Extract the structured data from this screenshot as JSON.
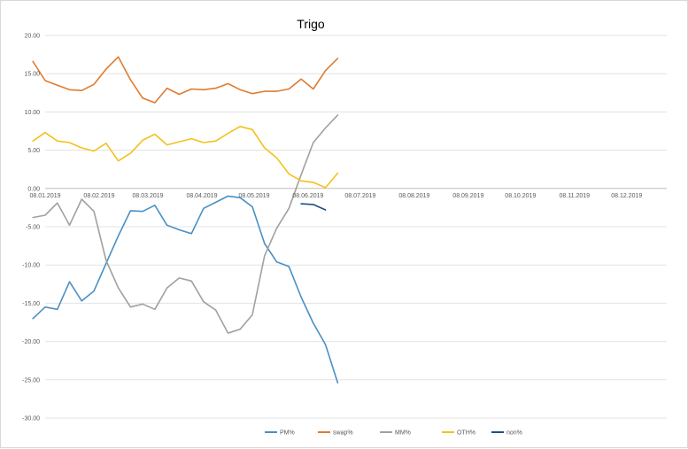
{
  "chart_data": {
    "type": "line",
    "title": "Trigo",
    "xlabel": "",
    "ylabel": "",
    "ylim": [
      -30,
      20
    ],
    "y_ticks": [
      20,
      15,
      10,
      5,
      0,
      -5,
      -10,
      -15,
      -20,
      -25,
      -30
    ],
    "y_tick_labels": [
      "20.00",
      "15.00",
      "10.00",
      "5.00",
      "0.00",
      "-5.00",
      "-10.00",
      "-15.00",
      "-20.00",
      "-25.00",
      "-30.00"
    ],
    "x_tick_labels": [
      "08.01.2019",
      "08.02.2019",
      "08.03.2019",
      "08.04.2019",
      "08.05.2019",
      "08.06.2019",
      "08.07.2019",
      "08.08.2019",
      "08.09.2019",
      "08.10.2019",
      "08.11.2019",
      "08.12.2019"
    ],
    "grid": "horizontal",
    "legend_position": "bottom",
    "series": [
      {
        "name": "PM%",
        "color": "#4a90c4",
        "points": [
          [
            "2019-01-01",
            -17.0
          ],
          [
            "2019-01-08",
            -15.5
          ],
          [
            "2019-01-15",
            -15.8
          ],
          [
            "2019-01-22",
            -12.2
          ],
          [
            "2019-01-29",
            -14.7
          ],
          [
            "2019-02-05",
            -13.4
          ],
          [
            "2019-02-12",
            -9.8
          ],
          [
            "2019-02-19",
            -6.2
          ],
          [
            "2019-02-26",
            -2.9
          ],
          [
            "2019-03-05",
            -3.0
          ],
          [
            "2019-03-12",
            -2.2
          ],
          [
            "2019-03-19",
            -4.8
          ],
          [
            "2019-03-26",
            -5.4
          ],
          [
            "2019-04-02",
            -5.9
          ],
          [
            "2019-04-09",
            -2.6
          ],
          [
            "2019-04-16",
            -1.8
          ],
          [
            "2019-04-23",
            -1.0
          ],
          [
            "2019-04-30",
            -1.2
          ],
          [
            "2019-05-07",
            -2.4
          ],
          [
            "2019-05-14",
            -7.2
          ],
          [
            "2019-05-21",
            -9.6
          ],
          [
            "2019-05-28",
            -10.2
          ],
          [
            "2019-06-04",
            -14.2
          ],
          [
            "2019-06-11",
            -17.6
          ],
          [
            "2019-06-18",
            -20.4
          ],
          [
            "2019-06-25",
            -25.4
          ]
        ]
      },
      {
        "name": "swap%",
        "color": "#e07b2e",
        "points": [
          [
            "2019-01-01",
            16.6
          ],
          [
            "2019-01-08",
            14.1
          ],
          [
            "2019-01-15",
            13.5
          ],
          [
            "2019-01-22",
            12.9
          ],
          [
            "2019-01-29",
            12.8
          ],
          [
            "2019-02-05",
            13.6
          ],
          [
            "2019-02-12",
            15.6
          ],
          [
            "2019-02-19",
            17.2
          ],
          [
            "2019-02-26",
            14.2
          ],
          [
            "2019-03-05",
            11.8
          ],
          [
            "2019-03-12",
            11.2
          ],
          [
            "2019-03-19",
            13.1
          ],
          [
            "2019-03-26",
            12.3
          ],
          [
            "2019-04-02",
            13.0
          ],
          [
            "2019-04-09",
            12.9
          ],
          [
            "2019-04-16",
            13.1
          ],
          [
            "2019-04-23",
            13.7
          ],
          [
            "2019-04-30",
            12.9
          ],
          [
            "2019-05-07",
            12.4
          ],
          [
            "2019-05-14",
            12.7
          ],
          [
            "2019-05-21",
            12.7
          ],
          [
            "2019-05-28",
            13.0
          ],
          [
            "2019-06-04",
            14.3
          ],
          [
            "2019-06-11",
            13.0
          ],
          [
            "2019-06-18",
            15.4
          ],
          [
            "2019-06-25",
            17.0
          ]
        ]
      },
      {
        "name": "MM%",
        "color": "#a0a0a0",
        "points": [
          [
            "2019-01-01",
            -3.8
          ],
          [
            "2019-01-08",
            -3.5
          ],
          [
            "2019-01-15",
            -1.9
          ],
          [
            "2019-01-22",
            -4.8
          ],
          [
            "2019-01-29",
            -1.4
          ],
          [
            "2019-02-05",
            -3.0
          ],
          [
            "2019-02-12",
            -9.4
          ],
          [
            "2019-02-19",
            -13.0
          ],
          [
            "2019-02-26",
            -15.5
          ],
          [
            "2019-03-05",
            -15.1
          ],
          [
            "2019-03-12",
            -15.8
          ],
          [
            "2019-03-19",
            -13.0
          ],
          [
            "2019-03-26",
            -11.7
          ],
          [
            "2019-04-02",
            -12.1
          ],
          [
            "2019-04-09",
            -14.8
          ],
          [
            "2019-04-16",
            -15.9
          ],
          [
            "2019-04-23",
            -18.9
          ],
          [
            "2019-04-30",
            -18.4
          ],
          [
            "2019-05-07",
            -16.5
          ],
          [
            "2019-05-14",
            -8.8
          ],
          [
            "2019-05-21",
            -5.2
          ],
          [
            "2019-05-28",
            -2.6
          ],
          [
            "2019-06-04",
            1.8
          ],
          [
            "2019-06-11",
            6.0
          ],
          [
            "2019-06-18",
            7.9
          ],
          [
            "2019-06-25",
            9.6
          ]
        ]
      },
      {
        "name": "OTH%",
        "color": "#f2c21a",
        "points": [
          [
            "2019-01-01",
            6.2
          ],
          [
            "2019-01-08",
            7.3
          ],
          [
            "2019-01-15",
            6.2
          ],
          [
            "2019-01-22",
            6.0
          ],
          [
            "2019-01-29",
            5.3
          ],
          [
            "2019-02-05",
            4.9
          ],
          [
            "2019-02-12",
            5.9
          ],
          [
            "2019-02-19",
            3.6
          ],
          [
            "2019-02-26",
            4.6
          ],
          [
            "2019-03-05",
            6.3
          ],
          [
            "2019-03-12",
            7.1
          ],
          [
            "2019-03-19",
            5.7
          ],
          [
            "2019-03-26",
            6.1
          ],
          [
            "2019-04-02",
            6.5
          ],
          [
            "2019-04-09",
            6.0
          ],
          [
            "2019-04-16",
            6.2
          ],
          [
            "2019-04-23",
            7.2
          ],
          [
            "2019-04-30",
            8.1
          ],
          [
            "2019-05-07",
            7.7
          ],
          [
            "2019-05-14",
            5.3
          ],
          [
            "2019-05-21",
            4.0
          ],
          [
            "2019-05-28",
            1.9
          ],
          [
            "2019-06-04",
            1.0
          ],
          [
            "2019-06-11",
            0.8
          ],
          [
            "2019-06-18",
            0.1
          ],
          [
            "2019-06-25",
            2.0
          ]
        ]
      },
      {
        "name": "non%",
        "color": "#1f4e87",
        "points": [
          [
            "2019-06-04",
            -2.0
          ],
          [
            "2019-06-11",
            -2.1
          ],
          [
            "2019-06-18",
            -2.8
          ]
        ]
      }
    ]
  }
}
